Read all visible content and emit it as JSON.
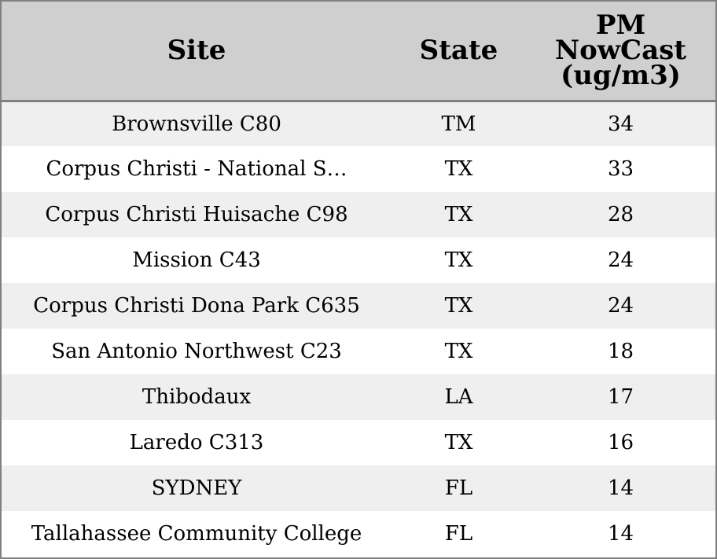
{
  "chart_data": {
    "type": "table",
    "columns": [
      "Site",
      "State",
      "PM NowCast (ug/m3)"
    ],
    "header_lines": {
      "site": [
        "Site"
      ],
      "state": [
        "State"
      ],
      "pm": [
        "PM",
        "NowCast",
        "(ug/m3)"
      ]
    },
    "rows": [
      {
        "site": "Brownsville C80",
        "state": "TM",
        "pm": 34
      },
      {
        "site": "Corpus Christi - National S…",
        "state": "TX",
        "pm": 33
      },
      {
        "site": "Corpus Christi Huisache C98",
        "state": "TX",
        "pm": 28
      },
      {
        "site": "Mission C43",
        "state": "TX",
        "pm": 24
      },
      {
        "site": "Corpus Christi Dona Park C635",
        "state": "TX",
        "pm": 24
      },
      {
        "site": "San Antonio Northwest C23",
        "state": "TX",
        "pm": 18
      },
      {
        "site": "Thibodaux",
        "state": "LA",
        "pm": 17
      },
      {
        "site": "Laredo C313",
        "state": "TX",
        "pm": 16
      },
      {
        "site": "SYDNEY",
        "state": "FL",
        "pm": 14
      },
      {
        "site": "Tallahassee Community College",
        "state": "FL",
        "pm": 14
      }
    ]
  },
  "colors": {
    "header_bg": "#cfcfcf",
    "row_odd_bg": "#efefef",
    "row_even_bg": "#ffffff",
    "border": "#808080",
    "text": "#000000"
  }
}
